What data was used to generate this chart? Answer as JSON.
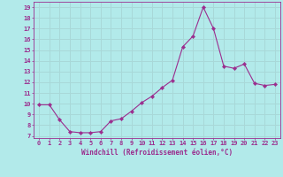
{
  "x": [
    0,
    1,
    2,
    3,
    4,
    5,
    6,
    7,
    8,
    9,
    10,
    11,
    12,
    13,
    14,
    15,
    16,
    17,
    18,
    19,
    20,
    21,
    22,
    23
  ],
  "y": [
    9.9,
    9.9,
    8.5,
    7.4,
    7.3,
    7.3,
    7.4,
    8.4,
    8.6,
    9.3,
    10.1,
    10.7,
    11.5,
    12.2,
    15.3,
    16.3,
    19.0,
    17.0,
    13.5,
    13.3,
    13.7,
    11.9,
    11.7,
    11.8
  ],
  "line_color": "#9b2d8e",
  "marker": "D",
  "marker_size": 2.2,
  "bg_color": "#b2eaea",
  "grid_color": "#a8d8d8",
  "xlabel": "Windchill (Refroidissement éolien,°C)",
  "ylabel_ticks": [
    7,
    8,
    9,
    10,
    11,
    12,
    13,
    14,
    15,
    16,
    17,
    18,
    19
  ],
  "xlim": [
    -0.5,
    23.5
  ],
  "ylim": [
    6.8,
    19.5
  ],
  "tick_fontsize": 5.0,
  "xlabel_fontsize": 5.5
}
